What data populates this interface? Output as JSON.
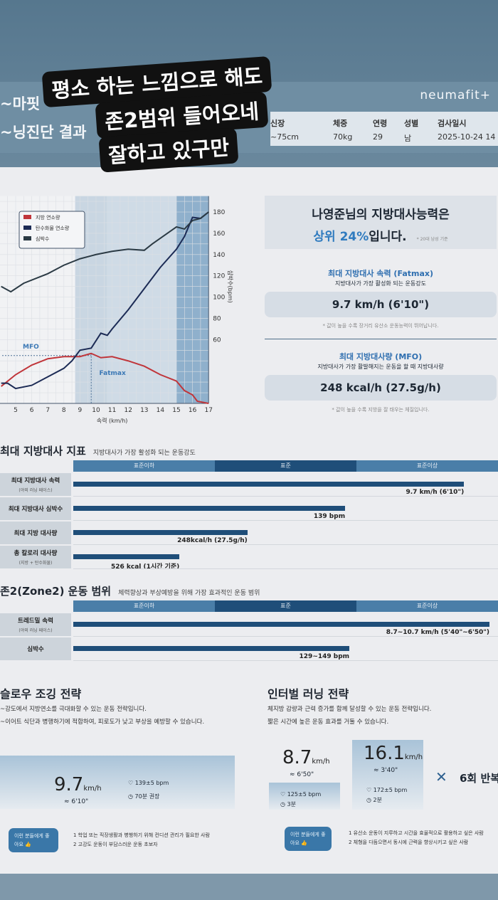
{
  "overlay_text": [
    "평소 하는 느낌으로 해도",
    "존2범위 들어오네",
    "잘하고 있구만"
  ],
  "header": {
    "brand": "neumafit+",
    "title_line1": "~마핏",
    "title_line2": "~닝진단 결과",
    "stats": [
      {
        "label": "신장",
        "value": "~75cm"
      },
      {
        "label": "체중",
        "value": "70kg"
      },
      {
        "label": "연령",
        "value": "29"
      },
      {
        "label": "성별",
        "value": "남"
      },
      {
        "label": "검사일시",
        "value": "2025-10-24 14"
      }
    ]
  },
  "chart_data": {
    "type": "line",
    "xlabel": "속력 (km/h)",
    "ylabel": "심박수(bpm)",
    "xlim": [
      4.1,
      17
    ],
    "ylim": [
      0,
      195
    ],
    "xticks": [
      5,
      6,
      7,
      8,
      9,
      10,
      11,
      12,
      13,
      14,
      15,
      16,
      17
    ],
    "yticks": [
      60,
      80,
      100,
      120,
      140,
      160,
      180
    ],
    "legend": "top-left",
    "grid": true,
    "zones": [
      {
        "from": 8.7,
        "to": 10.7,
        "color": "#c9d6e2"
      },
      {
        "from": 10.7,
        "to": 15,
        "color": "#cfdbe6"
      },
      {
        "from": 15,
        "to": 17,
        "color": "#8fb0cc"
      }
    ],
    "series": [
      {
        "name": "지방 연소량",
        "color": "#c0353a",
        "x": [
          4.1,
          5,
          6,
          7,
          8,
          9,
          9.7,
          10.3,
          11,
          12,
          13,
          14,
          15,
          15.5,
          16,
          16.3,
          17
        ],
        "y": [
          16,
          27,
          36,
          42,
          44,
          44,
          47,
          43,
          44,
          40,
          35,
          27,
          21,
          12,
          8,
          2,
          0
        ]
      },
      {
        "name": "탄수화물 연소량",
        "color": "#1c2b55",
        "x": [
          4.1,
          4.5,
          5,
          6,
          7,
          8,
          8.5,
          9,
          9.7,
          10.3,
          10.7,
          11,
          12,
          13,
          14,
          15,
          15.5,
          16,
          16.5,
          17
        ],
        "y": [
          19,
          19,
          14,
          17,
          25,
          33,
          40,
          50,
          52,
          66,
          64,
          70,
          88,
          108,
          128,
          145,
          157,
          175,
          174,
          180
        ]
      },
      {
        "name": "심박수",
        "color": "#2b3a44",
        "x": [
          4.1,
          4.7,
          5.5,
          7,
          8,
          9,
          10,
          11,
          12,
          13,
          13.5,
          15,
          15.5,
          16,
          16.5,
          17
        ],
        "y": [
          110,
          105,
          113,
          122,
          130,
          136,
          140,
          143,
          145,
          144,
          150,
          166,
          164,
          172,
          174,
          180
        ]
      }
    ],
    "annotations": [
      {
        "text": "MFO",
        "x": 4.1,
        "y": 45
      },
      {
        "text": "Fatmax",
        "x": 9.7,
        "y": 47
      }
    ]
  },
  "summary": {
    "line1": "나영준님의 지방대사능력은",
    "highlight": "상위 24%",
    "line2_rest": "입니다.",
    "footnote": "* 20대 남성 기준",
    "fatmax": {
      "title": "최대 지방대사 속력 (Fatmax)",
      "sub": "지방대사가 가장 활성화 되는 운동강도",
      "value": "9.7 km/h (6'10\")",
      "note": "* 값이 높을 수록 장거리 유산소 운동능력이 뛰어납니다."
    },
    "mfo": {
      "title": "최대 지방대사량 (MFO)",
      "sub": "지방대사가 가장 활발해지는 운동을 할 때 지방대사량",
      "value": "248 kcal/h  (27.5g/h)",
      "note": "* 값이 높을 수록 지방을 잘 태우는 체질입니다."
    }
  },
  "scale_labels": [
    "표준이하",
    "표준",
    "표준이상"
  ],
  "fat_metrics": {
    "title": "최대 지방대사 지표",
    "subtitle": "지방대사가 가장 활성화 되는 운동강도",
    "rows": [
      {
        "label": "최대 지방대사 속력",
        "sub": "(야외 러닝 페이스)",
        "value": "9.7 km/h (6'10\")",
        "fill": 0.92
      },
      {
        "label": "최대 지방대사 심박수",
        "sub": "",
        "value": "139 bpm",
        "fill": 0.64
      },
      {
        "label": "최대 지방 대사량",
        "sub": "",
        "value": "248kcal/h (27.5g/h)",
        "fill": 0.41
      },
      {
        "label": "총 칼로리 대사량",
        "sub": "(지방 + 탄수화물)",
        "value": "526 kcal   (1시간 기준)",
        "fill": 0.25
      }
    ]
  },
  "zone2": {
    "title": "존2(Zone2) 운동 범위",
    "subtitle": "체력향상과 부상예방을 위해 가장 효과적인 운동 범위",
    "rows": [
      {
        "label": "트레드밀 속력",
        "sub": "(야외 러닝 페이스)",
        "value": "8.7~10.7 km/h (5'40\"~6'50\")",
        "fill": 0.98
      },
      {
        "label": "심박수",
        "sub": "",
        "value": "129~149 bpm",
        "fill": 0.65
      }
    ]
  },
  "slow_jog": {
    "title": "슬로우 조깅 전략",
    "desc1": "~강도에서 지방연소를 극대화할 수 있는 운동 전략입니다.",
    "desc2": "~이어트 식단과 병행하기에 적합하여, 피로도가 낮고 부상을 예방할 수 있습니다.",
    "speed": "9.7",
    "unit": "km/h",
    "pace": "≈ 6'10\"",
    "hr": "139±5 bpm",
    "time": "70분 권장",
    "bubble": "이런 분들에게 좋아요",
    "list": [
      "1  학업 또는 직장생활과 병행하기 위해 컨디션 관리가 필요한 사람",
      "2  고강도 운동이 부담스러운 운동 초보자"
    ]
  },
  "interval": {
    "title": "인터벌 러닝 전략",
    "desc1": "체지방 감량과 근력 증가를 함께 달성할 수 있는 운동 전략입니다.",
    "desc2": "짧은 시간에 높은 운동 효과를 거둘 수 있습니다.",
    "low": {
      "speed": "8.7",
      "unit": "km/h",
      "pace": "≈ 6'50\"",
      "hr": "125±5 bpm",
      "time": "3분"
    },
    "high": {
      "speed": "16.1",
      "unit": "km/h",
      "pace": "≈ 3'40\"",
      "hr": "172±5 bpm",
      "time": "2분"
    },
    "repeat": "6회 반복",
    "bubble": "이런 분들에게 좋아요",
    "list": [
      "1  유산소 운동이 지루하고 시간을 효율적으로 활용하고 싶은 사람",
      "2  체형을 다듬으면서 동시에 근력을 향상시키고 싶은 사람"
    ]
  }
}
